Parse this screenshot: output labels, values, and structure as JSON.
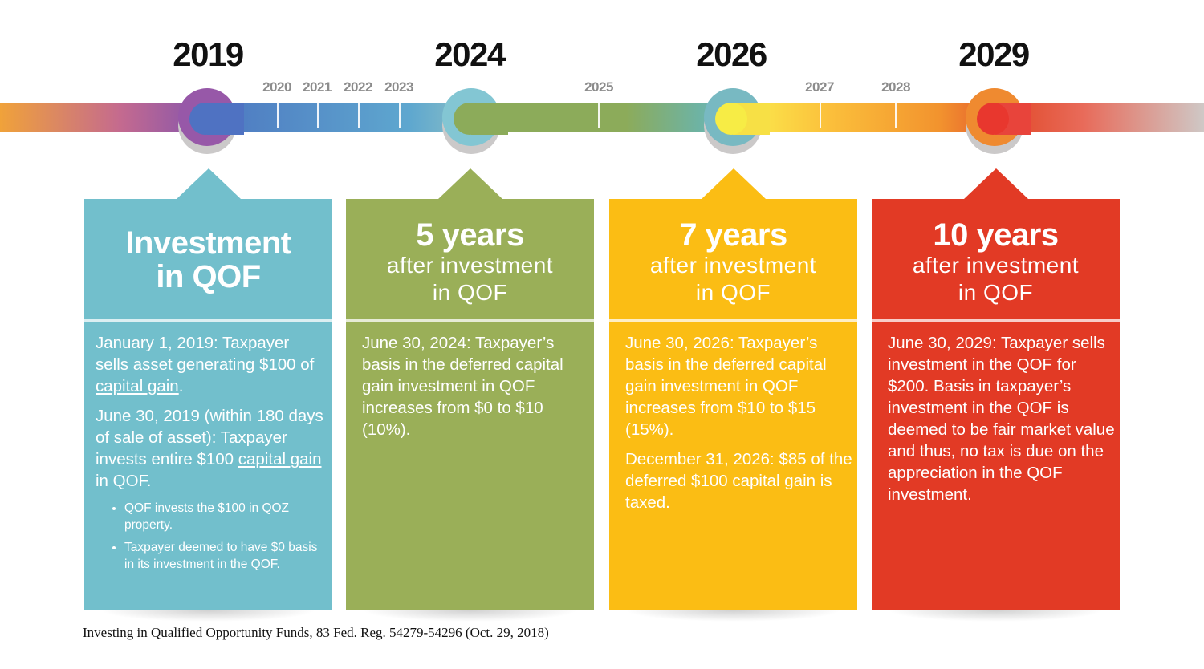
{
  "timeline": {
    "major_years": [
      "2019",
      "2024",
      "2026",
      "2029"
    ],
    "minor_years": [
      "2020",
      "2021",
      "2022",
      "2023",
      "2025",
      "2027",
      "2028"
    ]
  },
  "cards": [
    {
      "title": "Investment in QOF",
      "paragraphs": [
        "January 1, 2019: Taxpayer sells asset generating $100 of",
        "capital gain",
        ".",
        "June 30, 2019 (within 180 days of sale of asset): Taxpayer invests entire $100",
        "capital gain",
        "in QOF."
      ],
      "bullets": [
        "QOF invests the $100 in QOZ property.",
        "Taxpayer deemed to have $0 basis in its investment in the QOF."
      ],
      "color": "#72bfcc"
    },
    {
      "title": "5 years",
      "subtitle_1": "after investment",
      "subtitle_2": "in QOF",
      "paragraphs": [
        "June 30, 2024: Taxpayer’s basis in the deferred capital gain investment in QOF increases from $0 to $10 (10%)."
      ],
      "color": "#9aaf58"
    },
    {
      "title": "7 years",
      "subtitle_1": "after investment",
      "subtitle_2": "in QOF",
      "paragraphs": [
        "June 30, 2026: Taxpayer’s basis in the deferred capital gain investment in QOF increases from $10 to $15 (15%).",
        "December 31, 2026: $85 of the deferred $100 capital gain is taxed."
      ],
      "color": "#fbbd14"
    },
    {
      "title": "10 years",
      "subtitle_1": "after investment",
      "subtitle_2": "in QOF",
      "paragraphs": [
        "June 30, 2029: Taxpayer sells investment in the QOF for $200. Basis in taxpayer’s investment in the QOF is deemed to be fair market value and thus, no tax is due on the appreciation in the QOF investment."
      ],
      "color": "#e23a25"
    }
  ],
  "footnote": "Investing in Qualified Opportunity Funds, 83 Fed. Reg. 54279-54296 (Oct. 29, 2018)"
}
